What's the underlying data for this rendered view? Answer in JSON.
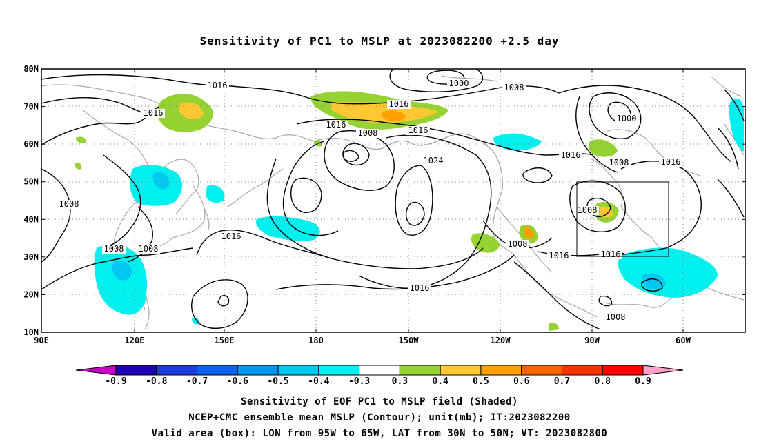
{
  "title": "Sensitivity of PC1 to MSLP at 2023082200 +2.5 day",
  "map": {
    "lon_range": [
      "90E",
      "45W"
    ],
    "lat_range": [
      "10N",
      "80N"
    ],
    "lat_labels": [
      "80N",
      "70N",
      "60N",
      "50N",
      "40N",
      "30N",
      "20N",
      "10N"
    ],
    "lon_labels": [
      "90E",
      "120E",
      "150E",
      "180",
      "150W",
      "120W",
      "90W",
      "60W"
    ],
    "contour_labels": [
      {
        "text": "1000",
        "name": "contour-label-1000-arctic"
      },
      {
        "text": "1008",
        "name": "contour-label-1008-arctic"
      },
      {
        "text": "1016",
        "name": "contour-label-1016-siberia"
      },
      {
        "text": "1016",
        "name": "contour-label-1016-west"
      },
      {
        "text": "1016",
        "name": "contour-label-1016-bering-a"
      },
      {
        "text": "1016",
        "name": "contour-label-1016-bering-b"
      },
      {
        "text": "1008",
        "name": "contour-label-1008-bering"
      },
      {
        "text": "1016",
        "name": "contour-label-1016-alaska"
      },
      {
        "text": "1024",
        "name": "contour-label-1024-pacific"
      },
      {
        "text": "1000",
        "name": "contour-label-1000-hudson"
      },
      {
        "text": "1016",
        "name": "contour-label-1016-hudson"
      },
      {
        "text": "1008",
        "name": "contour-label-1008-hudson"
      },
      {
        "text": "1016",
        "name": "contour-label-1016-labrador"
      },
      {
        "text": "1008",
        "name": "contour-label-1008-asia"
      },
      {
        "text": "1008",
        "name": "contour-label-1008-china-a"
      },
      {
        "text": "1008",
        "name": "contour-label-1008-china-b"
      },
      {
        "text": "1016",
        "name": "contour-label-1016-japan"
      },
      {
        "text": "1008",
        "name": "contour-label-1008-greatlakes"
      },
      {
        "text": "1008",
        "name": "contour-label-1008-mexico"
      },
      {
        "text": "1016",
        "name": "contour-label-1016-gulf-a"
      },
      {
        "text": "1016",
        "name": "contour-label-1016-gulf-b"
      },
      {
        "text": "1016",
        "name": "contour-label-1016-subtropics"
      },
      {
        "text": "1008",
        "name": "contour-label-1008-caribbean"
      }
    ],
    "valid_box": {
      "lon_from": "95W",
      "lon_to": "65W",
      "lat_from": "30N",
      "lat_to": "50N"
    },
    "colors": {
      "ocean_background": "#ffffff",
      "coastline": "#a8a8a8",
      "contour": "#000000",
      "grid": "#888888"
    }
  },
  "colorbar": {
    "labels": [
      "-0.9",
      "-0.8",
      "-0.7",
      "-0.6",
      "-0.5",
      "-0.4",
      "-0.3",
      "0.3",
      "0.4",
      "0.5",
      "0.6",
      "0.7",
      "0.8",
      "0.9"
    ],
    "colors": [
      "#c800c8",
      "#1e00b4",
      "#1e3cdc",
      "#0a64f0",
      "#0096f0",
      "#00c8f0",
      "#00f0f0",
      "#ffffff",
      "#96d232",
      "#ffc832",
      "#ffa000",
      "#ff6400",
      "#ff3200",
      "#ff0000",
      "#ffa0c8"
    ]
  },
  "footer": {
    "line1": "Sensitivity of EOF PC1 to MSLP field (Shaded)",
    "line2": "NCEP+CMC ensemble mean MSLP (Contour); unit(mb); IT:2023082200",
    "line3": "Valid area (box): LON from 95W to 65W, LAT from 30N to 50N; VT: 2023082800"
  }
}
